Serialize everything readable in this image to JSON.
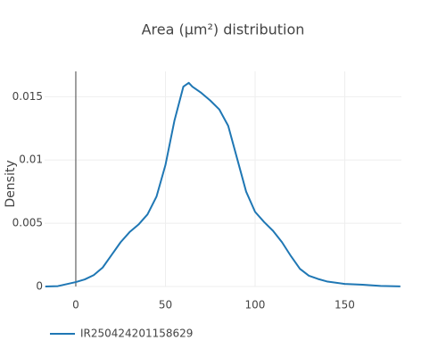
{
  "chart_data": {
    "type": "line",
    "title": "Area (μm²) distribution",
    "y_label": "Density",
    "x": [
      -17,
      -10,
      0,
      5,
      10,
      15,
      20,
      25,
      30,
      35,
      40,
      45,
      50,
      55,
      60,
      63,
      65,
      70,
      75,
      80,
      85,
      90,
      95,
      100,
      105,
      110,
      115,
      120,
      125,
      130,
      135,
      140,
      150,
      160,
      170,
      181
    ],
    "series": [
      {
        "name": "IR250424201158629",
        "color": "#1f77b4",
        "values": [
          0,
          3e-05,
          0.00035,
          0.00056,
          0.0009,
          0.0015,
          0.0025,
          0.0035,
          0.0043,
          0.0049,
          0.0057,
          0.0071,
          0.0096,
          0.0131,
          0.0158,
          0.0161,
          0.0158,
          0.0153,
          0.0147,
          0.014,
          0.0127,
          0.0101,
          0.0075,
          0.0059,
          0.0051,
          0.0044,
          0.0035,
          0.0024,
          0.0014,
          0.00085,
          0.0006,
          0.0004,
          0.0002,
          0.00014,
          4e-05,
          1e-05
        ]
      }
    ],
    "xlim": [
      -17.4,
      181.6
    ],
    "ylim": [
      0,
      0.017
    ],
    "xticks": [
      0,
      50,
      100,
      150
    ],
    "yticks": [
      0,
      0.005,
      0.01,
      0.015
    ],
    "grid": true,
    "zeroline": true,
    "legend": "bottom-left"
  }
}
